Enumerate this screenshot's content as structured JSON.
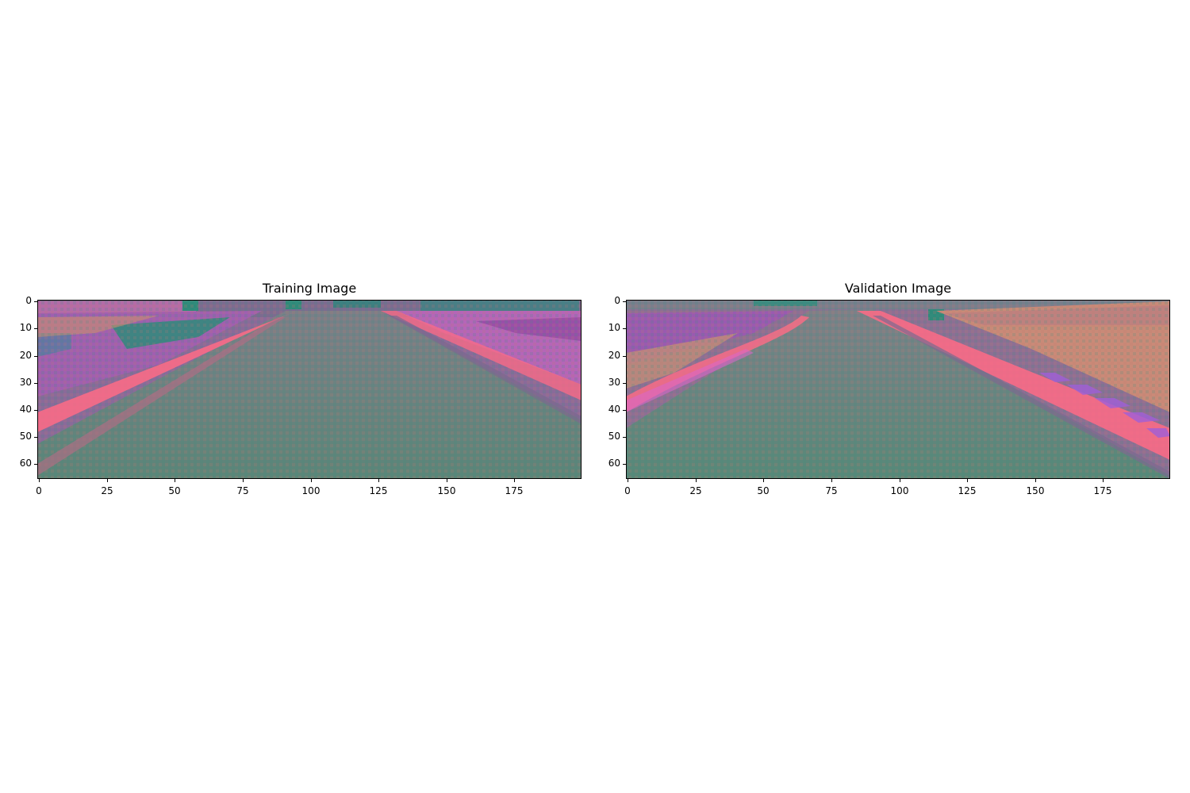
{
  "panels": [
    {
      "title": "Training Image",
      "x_ticks": [
        "0",
        "25",
        "50",
        "75",
        "100",
        "125",
        "150",
        "175"
      ],
      "y_ticks": [
        "0",
        "10",
        "20",
        "30",
        "40",
        "50",
        "60"
      ],
      "scene": "road-straight"
    },
    {
      "title": "Validation Image",
      "x_ticks": [
        "0",
        "25",
        "50",
        "75",
        "100",
        "125",
        "150",
        "175"
      ],
      "y_ticks": [
        "0",
        "10",
        "20",
        "30",
        "40",
        "50",
        "60"
      ],
      "scene": "road-curve-with-kerb"
    }
  ],
  "image_extent": {
    "width": 200,
    "height": 66
  },
  "colors": {
    "road": "#5e8378",
    "road_edge": "#c46a7d",
    "pink_line": "#ff6b86",
    "purple_grass": "#a05fb0",
    "teal_trees": "#2f8a7a",
    "tan_field": "#c98a78"
  }
}
